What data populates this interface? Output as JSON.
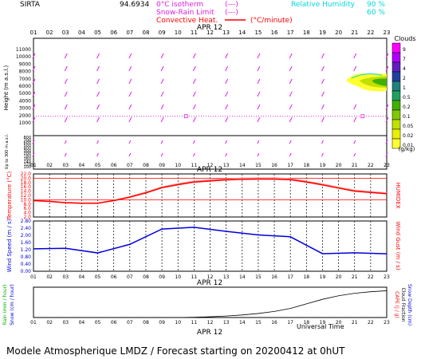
{
  "header": {
    "station": "SIRTA",
    "coords": "94.6934",
    "legend_iso": "0°C isotherm",
    "legend_snow": "Snow-Rain Limit",
    "legend_conv": "Convective Heat.",
    "legend_conv_unit": "(°C/minute)",
    "legend_iso_sym": "(---)",
    "legend_snow_sym": "(---)",
    "rh_label": "Relative Humidity",
    "rh_val1": "90 %",
    "rh_val2": "60 %"
  },
  "footer": {
    "universal_time": "Universal Time",
    "date_label": "APR 12",
    "caption": "Modele Atmospherique LMDZ / Forecast starting on 20200412 at 0hUT"
  },
  "colors": {
    "black": "#000000",
    "magenta": "#e020e0",
    "red": "#ff0000",
    "blue": "#0000dd",
    "cyan": "#00d8d8",
    "green": "#00b000",
    "darkred": "#a00000"
  },
  "chart_data": [
    {
      "type": "heatmap",
      "panel": "clouds",
      "date_label": "APR 12",
      "hours": [
        "01",
        "02",
        "03",
        "04",
        "05",
        "06",
        "07",
        "08",
        "09",
        "10",
        "11",
        "12",
        "13",
        "14",
        "15",
        "16",
        "17",
        "18",
        "19",
        "20",
        "21",
        "22",
        "23"
      ],
      "ylabel": "Height (m a.s.l.)",
      "ylabel_low": "Up to 300 m a.s.l.",
      "yticks_upper": [
        "11000",
        "10000",
        "9000",
        "8000",
        "7000",
        "6000",
        "5000",
        "4000",
        "3000",
        "2000",
        "1000"
      ],
      "yticks_lower": [
        "800",
        "700",
        "600",
        "500",
        "400",
        "300",
        "200",
        "180",
        "160",
        "140",
        "120",
        "100"
      ],
      "legend_title": "Clouds",
      "legend_unit": "(g/kg)",
      "legend_levels": [
        "9",
        "7",
        "4",
        "2",
        "1",
        "0.5",
        "0.2",
        "0.1",
        "0.05",
        "0.02",
        "0.01"
      ],
      "legend_colors": [
        "#ff00ff",
        "#b000ff",
        "#6020c0",
        "#2040a0",
        "#208080",
        "#20a060",
        "#40b000",
        "#80c800",
        "#c0e000",
        "#e8f000",
        "#ffff30"
      ],
      "isotherm_height_m": 1900,
      "cloud_patch": {
        "hour_start": 20.5,
        "hour_end": 23,
        "height_min_m": 6000,
        "height_max_m": 7700
      }
    },
    {
      "type": "line",
      "panel": "temperature",
      "ylabel": "Temperature (°C)",
      "ylabel_right": "HUMIDEX",
      "yticks": [
        "22.0",
        "20.0",
        "18.0",
        "16.0",
        "14.0",
        "12.0",
        "10.0",
        "8.0",
        "6.0",
        "4.0",
        "2.0"
      ],
      "ylim": [
        2,
        22
      ],
      "x": [
        1,
        2,
        3,
        4,
        5,
        6,
        7,
        8,
        9,
        10,
        11,
        12,
        13,
        14,
        15,
        16,
        17,
        18,
        19,
        20,
        21,
        22,
        23
      ],
      "series": [
        {
          "color": "#ff0000",
          "values": [
            9.6,
            9.2,
            8.6,
            8.4,
            8.4,
            9.6,
            11.2,
            13.2,
            15.6,
            17.0,
            18.2,
            18.7,
            19.2,
            19.5,
            19.6,
            19.6,
            19.3,
            18.2,
            16.9,
            15.4,
            14.0,
            13.4,
            12.8
          ]
        },
        {
          "color": "#ff9090",
          "values": [
            9.7,
            9.3,
            8.7,
            8.5,
            8.5,
            9.7,
            11.4,
            13.5,
            15.9,
            17.4,
            18.6,
            19.2,
            19.7,
            20.0,
            20.1,
            20.1,
            19.8,
            18.6,
            17.3,
            15.8,
            14.4,
            13.7,
            13.1
          ]
        }
      ],
      "hlines": [
        20.0,
        10.0
      ]
    },
    {
      "type": "line",
      "panel": "wind",
      "ylabel": "Wind Speed (m / s)",
      "ylabel_right": "Wind Gust (m / s)",
      "yticks": [
        "2.80",
        "2.40",
        "2.00",
        "1.60",
        "1.20",
        "0.80",
        "0.40",
        "0.00"
      ],
      "ylim": [
        0,
        2.8
      ],
      "x": [
        1,
        3,
        5,
        7,
        9,
        11,
        13,
        15,
        17,
        19,
        21,
        23
      ],
      "series": [
        {
          "color": "#0000dd",
          "values": [
            1.25,
            1.28,
            1.02,
            1.5,
            2.35,
            2.45,
            2.22,
            2.02,
            1.92,
            0.98,
            1.03,
            0.97
          ]
        }
      ]
    },
    {
      "type": "line",
      "panel": "precip",
      "ylabel": "Rain (mm / hour)",
      "ylabel2": "Snow (cm / hour)",
      "ylabel_right": "Snow Depth (cm)",
      "ylabel_right2": "CAPE (J / g)",
      "ylabel_right3": "Cloud Fraction",
      "x": [
        1,
        2,
        3,
        4,
        5,
        6,
        7,
        8,
        9,
        10,
        11,
        12,
        13,
        14,
        15,
        16,
        17,
        18,
        19,
        20,
        21,
        22,
        23
      ],
      "series": [
        {
          "color": "#000000",
          "values": [
            0,
            0,
            0,
            0,
            0,
            0,
            0,
            0,
            0,
            0,
            0.005,
            0.015,
            0.03,
            0.05,
            0.08,
            0.12,
            0.18,
            0.27,
            0.36,
            0.43,
            0.48,
            0.51,
            0.53
          ]
        }
      ]
    }
  ]
}
